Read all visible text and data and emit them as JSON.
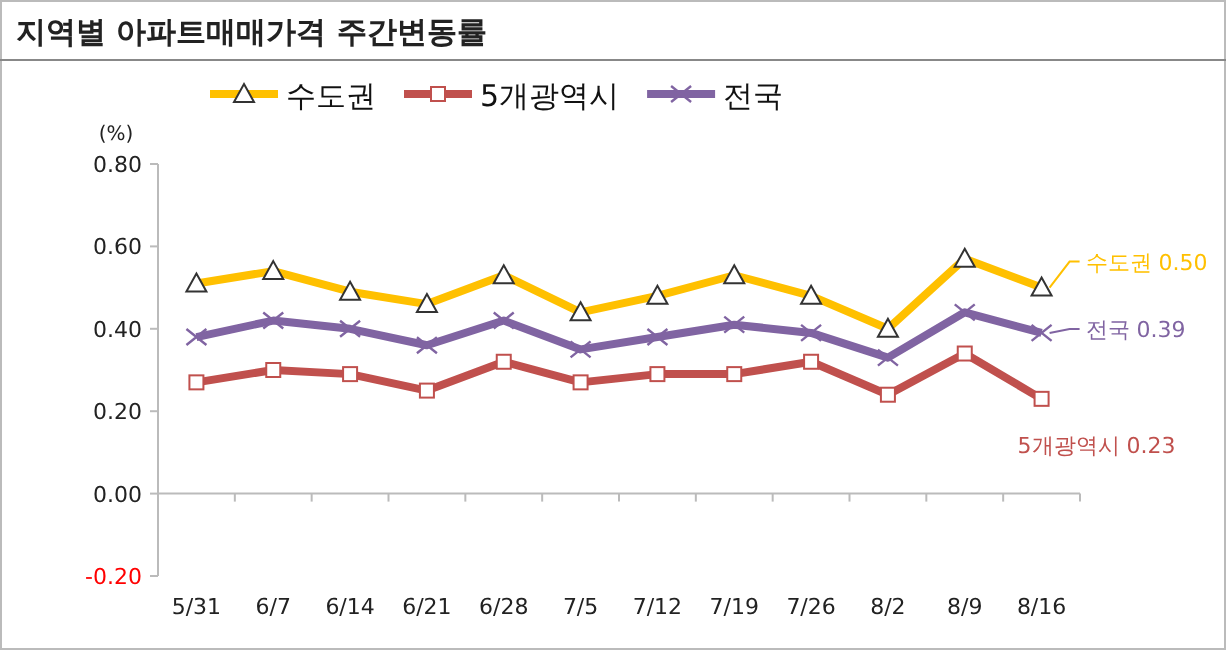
{
  "chart_data": {
    "type": "line",
    "title": "지역별 아파트매매가격 주간변동률",
    "ylabel": "(%)",
    "categories": [
      "5/31",
      "6/7",
      "6/14",
      "6/21",
      "6/28",
      "7/5",
      "7/12",
      "7/19",
      "7/26",
      "8/2",
      "8/9",
      "8/16"
    ],
    "series": [
      {
        "name": "수도권",
        "color": "#ffc000",
        "marker": "triangle",
        "values": [
          0.51,
          0.54,
          0.49,
          0.46,
          0.53,
          0.44,
          0.48,
          0.53,
          0.48,
          0.4,
          0.57,
          0.5
        ]
      },
      {
        "name": "5개광역시",
        "color": "#c0504d",
        "marker": "square",
        "values": [
          0.27,
          0.3,
          0.29,
          0.25,
          0.32,
          0.27,
          0.29,
          0.29,
          0.32,
          0.24,
          0.34,
          0.23
        ]
      },
      {
        "name": "전국",
        "color": "#8064a2",
        "marker": "cross",
        "values": [
          0.38,
          0.42,
          0.4,
          0.36,
          0.42,
          0.35,
          0.38,
          0.41,
          0.39,
          0.33,
          0.44,
          0.39
        ]
      }
    ],
    "ylim": [
      -0.2,
      0.8
    ],
    "yticks": [
      {
        "value": -0.2,
        "label": "-0.20"
      },
      {
        "value": 0,
        "label": "0.00"
      },
      {
        "value": 0.2,
        "label": "0.20"
      },
      {
        "value": 0.4,
        "label": "0.40"
      },
      {
        "value": 0.6,
        "label": "0.60"
      },
      {
        "value": 0.8,
        "label": "0.80"
      }
    ],
    "annotations": [
      {
        "text": "수도권 0.50",
        "x": "8/16",
        "y": 0.5
      },
      {
        "text": "5개광역시 0.23",
        "x": "8/16",
        "y": 0.23
      },
      {
        "text": "전국 0.39",
        "x": "8/16",
        "y": 0.39
      }
    ],
    "legend": "top",
    "line_style": "solid"
  }
}
